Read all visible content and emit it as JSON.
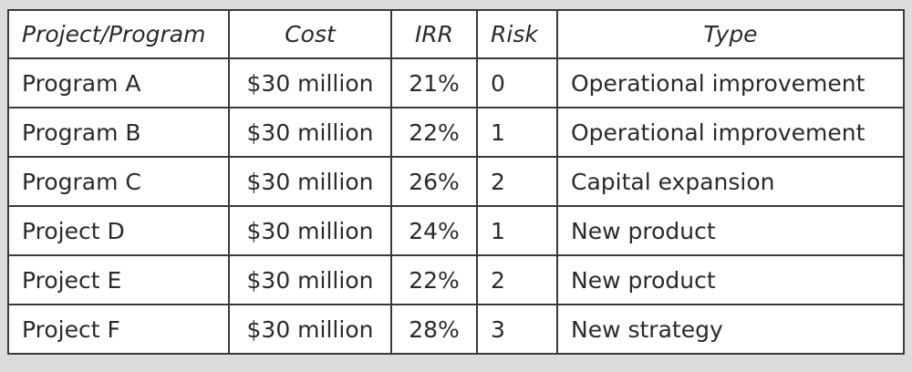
{
  "headers": [
    "Project/Program",
    "Cost",
    "IRR",
    "Risk",
    "Type"
  ],
  "rows": [
    [
      "Program A",
      "$30 million",
      "21%",
      "0",
      "Operational improvement"
    ],
    [
      "Program B",
      "$30 million",
      "22%",
      "1",
      "Operational improvement"
    ],
    [
      "Program C",
      "$30 million",
      "26%",
      "2",
      "Capital expansion"
    ],
    [
      "Project D",
      "$30 million",
      "24%",
      "1",
      "New product"
    ],
    [
      "Project E",
      "$30 million",
      "22%",
      "2",
      "New product"
    ],
    [
      "Project F",
      "$30 million",
      "28%",
      "3",
      "New strategy"
    ]
  ]
}
